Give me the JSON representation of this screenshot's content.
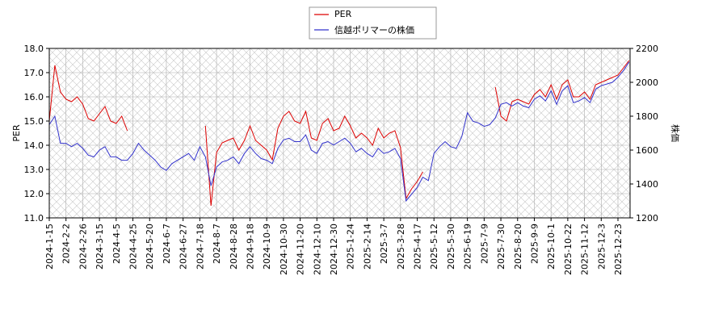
{
  "chart_data": {
    "type": "line",
    "categories": [
      "2024-1-15",
      null,
      null,
      "2024-2-2",
      null,
      null,
      "2024-2-26",
      null,
      null,
      "2024-3-15",
      null,
      null,
      "2024-4-5",
      null,
      null,
      "2024-4-25",
      null,
      null,
      "2024-5-20",
      null,
      null,
      "2024-6-7",
      null,
      null,
      "2024-6-27",
      null,
      null,
      "2024-7-18",
      null,
      null,
      "2024-8-7",
      null,
      null,
      "2024-8-28",
      null,
      null,
      "2024-9-18",
      null,
      null,
      "2024-10-9",
      null,
      null,
      "2024-10-30",
      null,
      null,
      "2024-11-20",
      null,
      null,
      "2024-12-10",
      null,
      null,
      "2024-12-30",
      null,
      null,
      "2025-1-24",
      null,
      null,
      "2025-2-14",
      null,
      null,
      "2025-3-7",
      null,
      null,
      "2025-3-28",
      null,
      null,
      "2025-4-17",
      null,
      null,
      "2025-5-12",
      null,
      null,
      "2025-5-30",
      null,
      null,
      "2025-6-19",
      null,
      null,
      "2025-7-9",
      null,
      null,
      "2025-7-30",
      null,
      null,
      "2025-8-20",
      null,
      null,
      "2025-9-9",
      null,
      null,
      "2025-10-1",
      null,
      null,
      "2025-10-22",
      null,
      null,
      "2025-11-12",
      null,
      null,
      "2025-12-3",
      null,
      null,
      "2025-12-23",
      null,
      null
    ],
    "ylabel": "PER",
    "y2label": "株価",
    "ylim": [
      11,
      18
    ],
    "yticks": [
      {
        "value": 11,
        "label": "11.0"
      },
      {
        "value": 12,
        "label": "12.0"
      },
      {
        "value": 13,
        "label": "13.0"
      },
      {
        "value": 14,
        "label": "14.0"
      },
      {
        "value": 15,
        "label": "15.0"
      },
      {
        "value": 16,
        "label": "16.0"
      },
      {
        "value": 17,
        "label": "17.0"
      },
      {
        "value": 18,
        "label": "18.0"
      }
    ],
    "y2lim": [
      1200,
      2200
    ],
    "y2ticks": [
      1200,
      1400,
      1600,
      1800,
      2000,
      2200
    ],
    "grid": true,
    "legend": "upper center",
    "series": [
      {
        "name": "PER",
        "color": "#dd0000",
        "values": [
          15.0,
          17.3,
          16.2,
          15.9,
          15.8,
          16.0,
          15.7,
          15.1,
          15.0,
          15.3,
          15.6,
          15.0,
          14.9,
          15.2,
          14.6,
          null,
          null,
          null,
          null,
          null,
          null,
          null,
          null,
          null,
          null,
          null,
          null,
          null,
          14.8,
          11.5,
          13.7,
          14.1,
          14.2,
          14.3,
          13.8,
          14.2,
          14.8,
          14.2,
          14.0,
          13.8,
          13.4,
          14.7,
          15.2,
          15.4,
          15.0,
          14.9,
          15.4,
          14.3,
          14.2,
          14.9,
          15.1,
          14.6,
          14.7,
          15.2,
          14.8,
          14.3,
          14.5,
          14.3,
          14.0,
          14.7,
          14.3,
          14.5,
          14.6,
          13.9,
          11.8,
          12.2,
          12.5,
          12.9,
          null,
          null,
          null,
          null,
          null,
          null,
          null,
          null,
          null,
          null,
          null,
          null,
          16.4,
          15.2,
          15.0,
          15.8,
          15.9,
          15.8,
          15.7,
          16.1,
          16.3,
          16.0,
          16.5,
          15.9,
          16.5,
          16.7,
          16.0,
          16.0,
          16.2,
          15.9,
          16.5,
          16.6,
          16.7,
          16.8,
          16.9,
          17.2,
          17.5
        ]
      },
      {
        "name": "信越ポリマーの株価",
        "color": "#3333cc",
        "axis": "y2",
        "values": [
          1750,
          1800,
          1640,
          1640,
          1620,
          1640,
          1610,
          1570,
          1560,
          1600,
          1620,
          1560,
          1560,
          1540,
          1540,
          1580,
          1640,
          1600,
          1570,
          1540,
          1500,
          1480,
          1520,
          1540,
          1560,
          1580,
          1540,
          1620,
          1560,
          1390,
          1500,
          1530,
          1540,
          1560,
          1520,
          1580,
          1620,
          1580,
          1550,
          1540,
          1520,
          1610,
          1660,
          1670,
          1650,
          1650,
          1690,
          1600,
          1580,
          1640,
          1650,
          1630,
          1650,
          1670,
          1640,
          1590,
          1610,
          1580,
          1560,
          1610,
          1580,
          1590,
          1610,
          1550,
          1300,
          1340,
          1380,
          1440,
          1420,
          1580,
          1620,
          1650,
          1620,
          1610,
          1680,
          1820,
          1770,
          1760,
          1740,
          1750,
          1790,
          1870,
          1880,
          1860,
          1880,
          1860,
          1850,
          1900,
          1920,
          1890,
          1950,
          1870,
          1950,
          1980,
          1880,
          1890,
          1910,
          1880,
          1960,
          1980,
          1990,
          2000,
          2030,
          2070,
          2120
        ]
      }
    ]
  }
}
